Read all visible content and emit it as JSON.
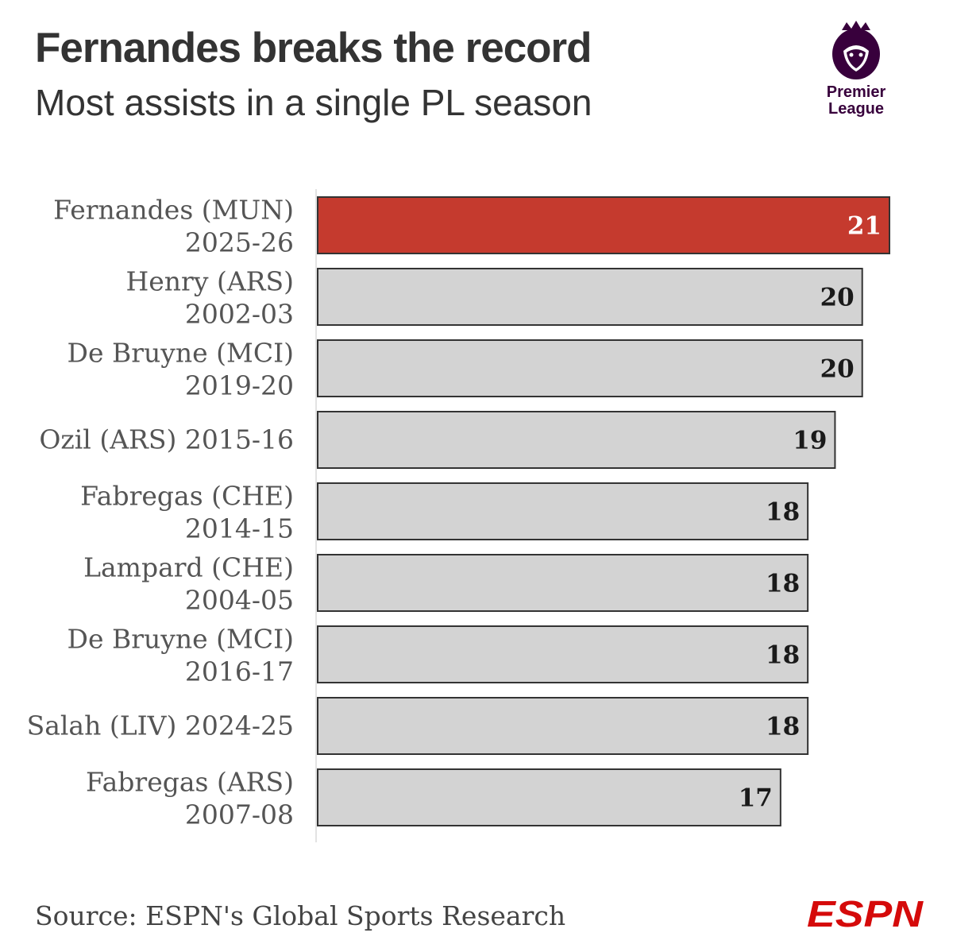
{
  "header": {
    "title": "Fernandes breaks the record",
    "subtitle": "Most assists in a single PL season"
  },
  "logo": {
    "line1": "Premier",
    "line2": "League",
    "color": "#38003c"
  },
  "footer": {
    "source": "Source: ESPN's Global Sports Research",
    "brand": "ESPN",
    "brand_color": "#d50a0a"
  },
  "colors": {
    "highlight": "#c53a2e",
    "bar": "#d3d3d3",
    "bar_outline": "#333333",
    "highlight_text": "#ffffff",
    "value_text": "#1a1a1a"
  },
  "chart_data": {
    "type": "bar",
    "orientation": "horizontal",
    "title": "Fernandes breaks the record",
    "subtitle": "Most assists in a single PL season",
    "categories": [
      [
        "Fernandes (MUN)",
        "2025-26"
      ],
      [
        "Henry (ARS)",
        "2002-03"
      ],
      [
        "De Bruyne (MCI)",
        "2019-20"
      ],
      [
        "Ozil (ARS) 2015-16"
      ],
      [
        "Fabregas (CHE)",
        "2014-15"
      ],
      [
        "Lampard (CHE)",
        "2004-05"
      ],
      [
        "De Bruyne (MCI)",
        "2016-17"
      ],
      [
        "Salah (LIV) 2024-25"
      ],
      [
        "Fabregas (ARS)",
        "2007-08"
      ]
    ],
    "values": [
      21,
      20,
      20,
      19,
      18,
      18,
      18,
      18,
      17
    ],
    "highlight_index": 0,
    "xlim": [
      0,
      21
    ],
    "grid": false,
    "source": "Source: ESPN's Global Sports Research"
  }
}
